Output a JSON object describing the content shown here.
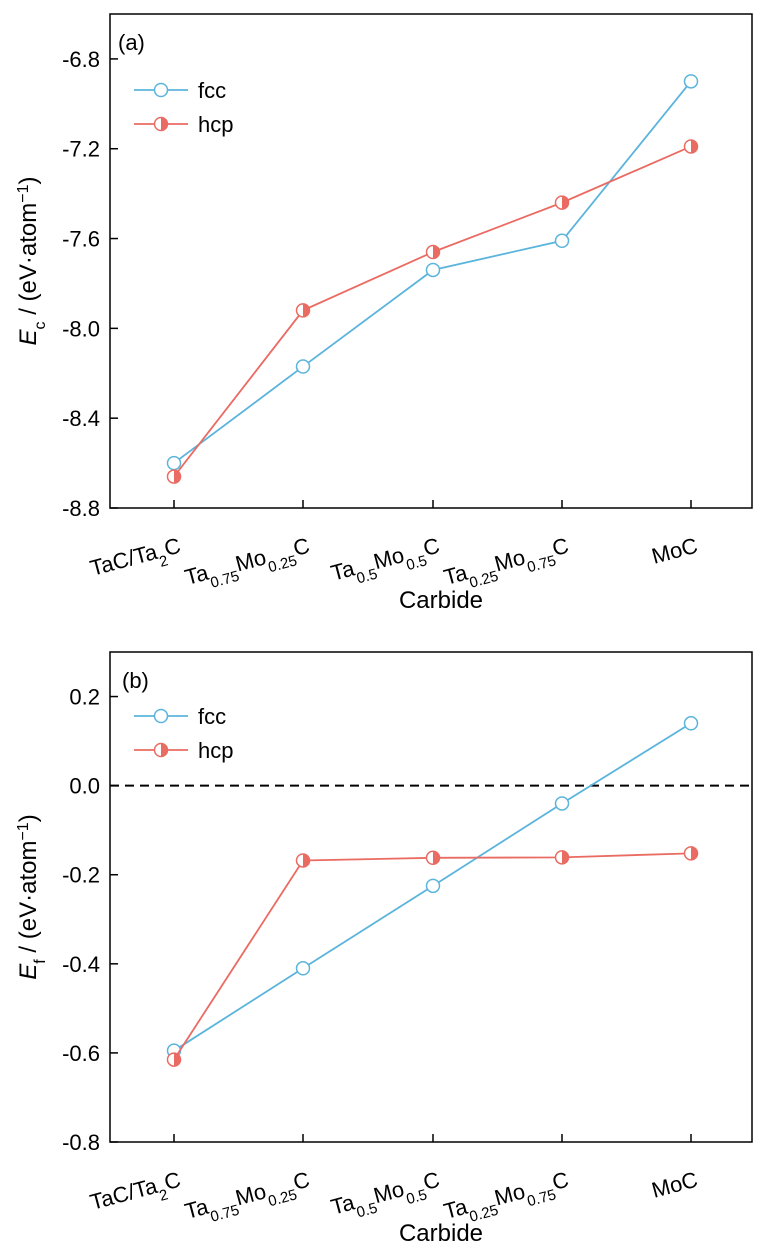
{
  "colors": {
    "fcc": "#5bb4dc",
    "hcp": "#ea6b62",
    "axis": "#000000"
  },
  "chart_data": [
    {
      "type": "line",
      "panel_label": "(a)",
      "xlabel": "Carbide",
      "ylabel_symbol": "E",
      "ylabel_sub": "c",
      "ylabel_unit": " / (eV·atom",
      "ylabel_sup": "−1",
      "ylabel_close": ")",
      "categories": [
        {
          "base": "TaC/Ta",
          "parts": [
            [
              "TaC/Ta",
              ""
            ],
            [
              "2",
              "sub"
            ],
            [
              "C",
              ""
            ]
          ]
        },
        {
          "parts": [
            [
              "Ta",
              ""
            ],
            [
              "0.75",
              "sub"
            ],
            [
              "Mo",
              ""
            ],
            [
              "0.25",
              "sub"
            ],
            [
              "C",
              ""
            ]
          ]
        },
        {
          "parts": [
            [
              "Ta",
              ""
            ],
            [
              "0.5",
              "sub"
            ],
            [
              "Mo",
              ""
            ],
            [
              "0.5",
              "sub"
            ],
            [
              "C",
              ""
            ]
          ]
        },
        {
          "parts": [
            [
              "Ta",
              ""
            ],
            [
              "0.25",
              "sub"
            ],
            [
              "Mo",
              ""
            ],
            [
              "0.75",
              "sub"
            ],
            [
              "C",
              ""
            ]
          ]
        },
        {
          "parts": [
            [
              "MoC",
              ""
            ]
          ]
        }
      ],
      "ylim": [
        -8.8,
        -6.6
      ],
      "yticks": [
        -8.8,
        -8.4,
        -8.0,
        -7.6,
        -7.2,
        -6.8
      ],
      "ytick_labels": [
        "-8.8",
        "-8.4",
        "-8.0",
        "-7.6",
        "-7.2",
        "-6.8"
      ],
      "reference_line": null,
      "legend": "top-left",
      "series": [
        {
          "name": "fcc",
          "marker": "open-circle",
          "values": [
            -8.6,
            -8.17,
            -7.74,
            -7.61,
            -6.9
          ]
        },
        {
          "name": "hcp",
          "marker": "half-filled-circle",
          "values": [
            -8.66,
            -7.92,
            -7.66,
            -7.44,
            -7.19
          ]
        }
      ]
    },
    {
      "type": "line",
      "panel_label": "(b)",
      "xlabel": "Carbide",
      "ylabel_symbol": "E",
      "ylabel_sub": "f",
      "ylabel_unit": " / (eV·atom",
      "ylabel_sup": "−1",
      "ylabel_close": ")",
      "categories": [
        {
          "parts": [
            [
              "TaC/Ta",
              ""
            ],
            [
              "2",
              "sub"
            ],
            [
              "C",
              ""
            ]
          ]
        },
        {
          "parts": [
            [
              "Ta",
              ""
            ],
            [
              "0.75",
              "sub"
            ],
            [
              "Mo",
              ""
            ],
            [
              "0.25",
              "sub"
            ],
            [
              "C",
              ""
            ]
          ]
        },
        {
          "parts": [
            [
              "Ta",
              ""
            ],
            [
              "0.5",
              "sub"
            ],
            [
              "Mo",
              ""
            ],
            [
              "0.5",
              "sub"
            ],
            [
              "C",
              ""
            ]
          ]
        },
        {
          "parts": [
            [
              "Ta",
              ""
            ],
            [
              "0.25",
              "sub"
            ],
            [
              "Mo",
              ""
            ],
            [
              "0.75",
              "sub"
            ],
            [
              "C",
              ""
            ]
          ]
        },
        {
          "parts": [
            [
              "MoC",
              ""
            ]
          ]
        }
      ],
      "ylim": [
        -0.8,
        0.3
      ],
      "yticks": [
        -0.8,
        -0.6,
        -0.4,
        -0.2,
        0.0,
        0.2
      ],
      "ytick_labels": [
        "-0.8",
        "-0.6",
        "-0.4",
        "-0.2",
        "0.0",
        "0.2"
      ],
      "reference_line": 0.0,
      "legend": "top-left",
      "series": [
        {
          "name": "fcc",
          "marker": "open-circle",
          "values": [
            -0.595,
            -0.41,
            -0.225,
            -0.04,
            0.14
          ]
        },
        {
          "name": "hcp",
          "marker": "half-filled-circle",
          "values": [
            -0.615,
            -0.168,
            -0.162,
            -0.161,
            -0.152
          ]
        }
      ]
    }
  ]
}
